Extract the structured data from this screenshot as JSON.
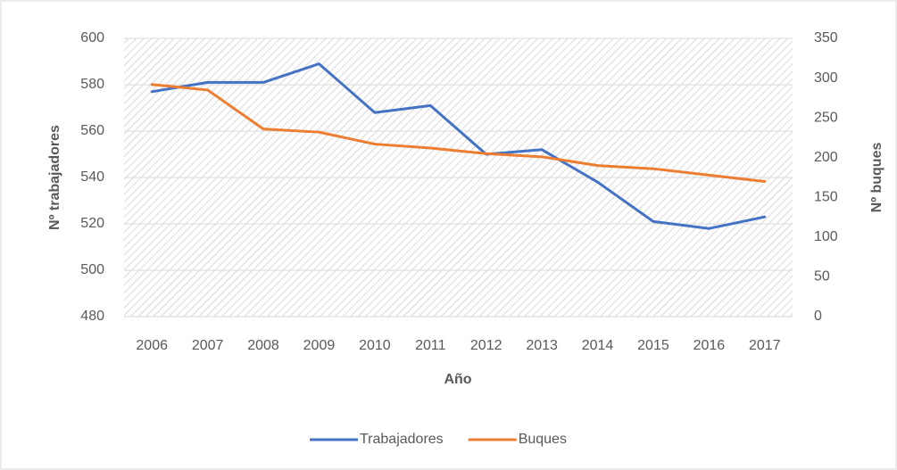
{
  "chart_data": {
    "type": "line",
    "x_label": "Año",
    "y_label": "Nº trabajadores",
    "y2_label": "Nº buques",
    "categories": [
      "2006",
      "2007",
      "2008",
      "2009",
      "2010",
      "2011",
      "2012",
      "2013",
      "2014",
      "2015",
      "2016",
      "2017"
    ],
    "series": [
      {
        "name": "Trabajadores",
        "color": "#4472c4",
        "values": [
          577,
          581,
          581,
          589,
          568,
          571,
          550,
          552,
          538,
          521,
          518,
          523
        ]
      },
      {
        "name": "Buques",
        "color": "#ed7d31",
        "axis": "y2",
        "values": [
          292,
          285,
          236,
          232,
          217,
          212,
          205,
          201,
          190,
          186,
          178,
          170
        ]
      }
    ],
    "ylim": [
      480,
      600
    ],
    "yticks": [
      480,
      500,
      520,
      540,
      560,
      580,
      600
    ],
    "y2lim": [
      0,
      350
    ],
    "y2ticks": [
      0,
      50,
      100,
      150,
      200,
      250,
      300,
      350
    ],
    "grid": true,
    "legend": "bottom"
  }
}
